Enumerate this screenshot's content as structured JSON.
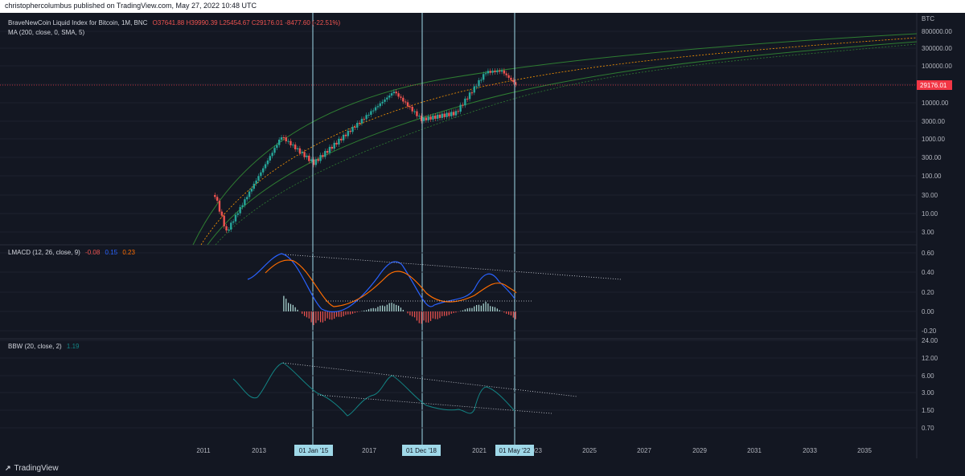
{
  "header": {
    "text": "christophercolumbus published on TradingView.com, May 27, 2022 10:48 UTC"
  },
  "price_panel": {
    "legend_title": "BraveNewCoin Liquid Index for Bitcoin, 1M, BNC",
    "ohlc": [
      "O37641.88",
      "H39990.39",
      "L25454.67",
      "C29176.01",
      "-8477.60 (-22.51%)"
    ],
    "ma_label": "MA (200, close, 0, SMA, 5)",
    "currency": "BTC",
    "last_price_label": "29176.01",
    "colors": {
      "up": "#26a69a",
      "down": "#ef5350",
      "channel": "#2e7d32",
      "ma": "#ff9800",
      "last": "#f23645"
    }
  },
  "lmacd_panel": {
    "legend_title": "LMACD (12, 26, close, 9)",
    "values": [
      "-0.08",
      "0.15",
      "0.23"
    ],
    "colors": {
      "hist": "#ef5350",
      "macd": "#2962ff",
      "signal": "#ff6d00"
    }
  },
  "bbw_panel": {
    "legend_title": "BBW (20, close, 2)",
    "value": "1.19",
    "color": "#138484"
  },
  "time_markers": [
    "01 Jan '15",
    "01 Dec '18",
    "01 May '22"
  ],
  "tradingview_label": "TradingView",
  "chart_data": [
    {
      "type": "line",
      "title": "BraveNewCoin Liquid Index for Bitcoin, 1M, BNC",
      "yscale": "log",
      "ytick_labels": [
        "800000.00",
        "300000.00",
        "100000.00",
        "30000.00",
        "10000.00",
        "3000.00",
        "1000.00",
        "300.00",
        "100.00",
        "30.00",
        "10.00",
        "3.00"
      ],
      "xtick_labels": [
        "2011",
        "2013",
        "2015",
        "2017",
        "2019",
        "2021",
        "2023",
        "2025",
        "2027",
        "2029",
        "2031",
        "2033",
        "2035"
      ],
      "series": [
        {
          "name": "BTC",
          "x": [
            "2011-06",
            "2011-11",
            "2013-11",
            "2015-01",
            "2017-12",
            "2018-12",
            "2020-03",
            "2021-04",
            "2021-11",
            "2022-05"
          ],
          "values": [
            30,
            3,
            1150,
            220,
            19000,
            3300,
            5000,
            63000,
            68000,
            29176
          ]
        },
        {
          "name": "MA (200, close, 0, SMA, 5)",
          "x": [
            "2011",
            "2015",
            "2019",
            "2023",
            "2027",
            "2031",
            "2035"
          ],
          "values": [
            1,
            60,
            3500,
            40000,
            150000,
            300000,
            450000
          ]
        }
      ]
    },
    {
      "type": "line",
      "title": "LMACD (12, 26, close, 9)",
      "ytick_labels": [
        "0.60",
        "0.40",
        "0.20",
        "0.00",
        "-0.20"
      ],
      "ylim": [
        -0.25,
        0.65
      ],
      "series": [
        {
          "name": "MACD",
          "x": [
            "2012-06",
            "2013-12",
            "2014-12",
            "2015-06",
            "2017-12",
            "2018-12",
            "2019-06",
            "2021-04",
            "2022-05"
          ],
          "values": [
            0.34,
            0.6,
            0.05,
            -0.05,
            0.52,
            -0.05,
            0.12,
            0.42,
            0.15
          ]
        },
        {
          "name": "Signal",
          "x": [
            "2012-09",
            "2014-03",
            "2015-09",
            "2018-03",
            "2019-09",
            "2021-09",
            "2022-05"
          ],
          "values": [
            0.4,
            0.52,
            0.05,
            0.45,
            0.1,
            0.32,
            0.23
          ]
        },
        {
          "name": "Histogram",
          "x": [
            "2013-12",
            "2015-01",
            "2017-12",
            "2018-12",
            "2021-04",
            "2022-05"
          ],
          "values": [
            0.16,
            -0.14,
            0.1,
            -0.14,
            0.1,
            -0.08
          ]
        }
      ]
    },
    {
      "type": "line",
      "title": "BBW (20, close, 2)",
      "yscale": "log",
      "ytick_labels": [
        "24.00",
        "12.00",
        "6.00",
        "3.00",
        "1.50",
        "0.70"
      ],
      "series": [
        {
          "name": "BBW",
          "x": [
            "2011-11",
            "2013-12",
            "2015-06",
            "2016-06",
            "2017-12",
            "2019-06",
            "2020-06",
            "2021-04",
            "2022-05"
          ],
          "values": [
            5.2,
            9.5,
            1.5,
            1.0,
            4.5,
            1.5,
            1.2,
            3.8,
            1.19
          ]
        }
      ]
    }
  ]
}
